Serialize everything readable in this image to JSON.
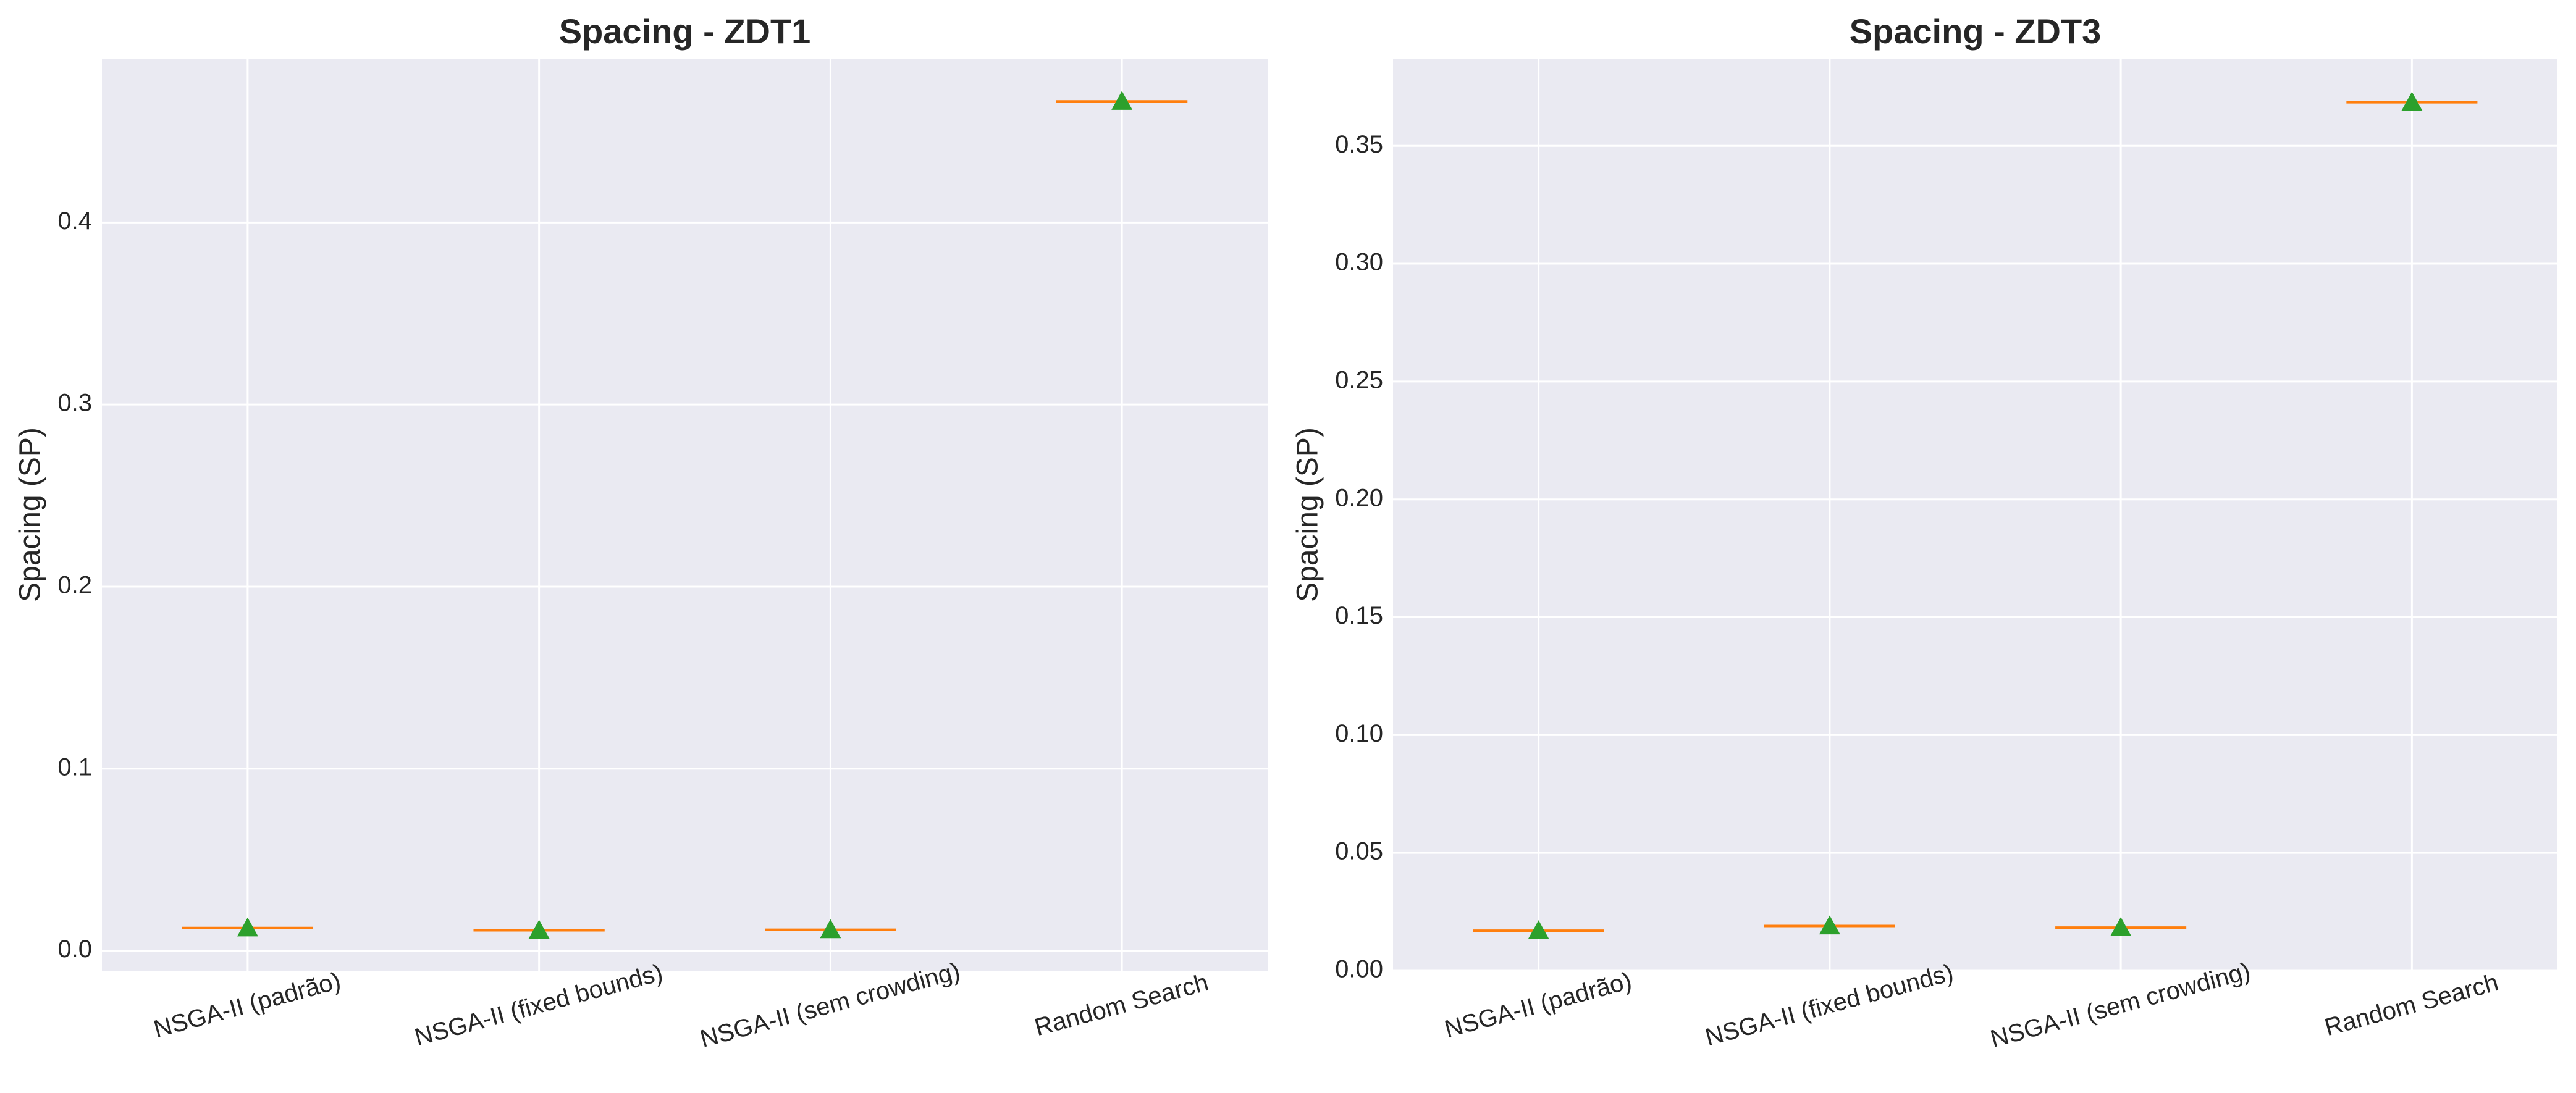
{
  "chart_data": [
    {
      "type": "box",
      "title": "Spacing - ZDT1",
      "ylabel": "Spacing (SP)",
      "xlabel": "",
      "categories": [
        "NSGA-II (padrão)",
        "NSGA-II (fixed bounds)",
        "NSGA-II (sem crowding)",
        "Random Search"
      ],
      "yticks": [
        0.0,
        0.1,
        0.2,
        0.3,
        0.4
      ],
      "ytick_labels": [
        "0.0",
        "0.1",
        "0.2",
        "0.3",
        "0.4"
      ],
      "ylim": [
        -0.011,
        0.49
      ],
      "medians": [
        0.0125,
        0.0112,
        0.0115,
        0.4665
      ],
      "means": [
        0.0125,
        0.0112,
        0.0115,
        0.4665
      ],
      "grid": true
    },
    {
      "type": "box",
      "title": "Spacing - ZDT3",
      "ylabel": "Spacing (SP)",
      "xlabel": "",
      "categories": [
        "NSGA-II (padrão)",
        "NSGA-II (fixed bounds)",
        "NSGA-II (sem crowding)",
        "Random Search"
      ],
      "yticks": [
        0.0,
        0.05,
        0.1,
        0.15,
        0.2,
        0.25,
        0.3,
        0.35
      ],
      "ytick_labels": [
        "0.00",
        "0.05",
        "0.10",
        "0.15",
        "0.20",
        "0.25",
        "0.30",
        "0.35"
      ],
      "ylim": [
        0.0,
        0.387
      ],
      "medians": [
        0.017,
        0.019,
        0.0183,
        0.3685
      ],
      "means": [
        0.017,
        0.019,
        0.0183,
        0.3685
      ],
      "grid": true
    }
  ],
  "colors": {
    "median_line": "#ff7f0e",
    "mean_marker": "#2ca02c",
    "plot_background": "#eaeaf2",
    "grid": "#ffffff",
    "text": "#262626"
  },
  "icons": {
    "mean_marker": "triangle-up"
  }
}
